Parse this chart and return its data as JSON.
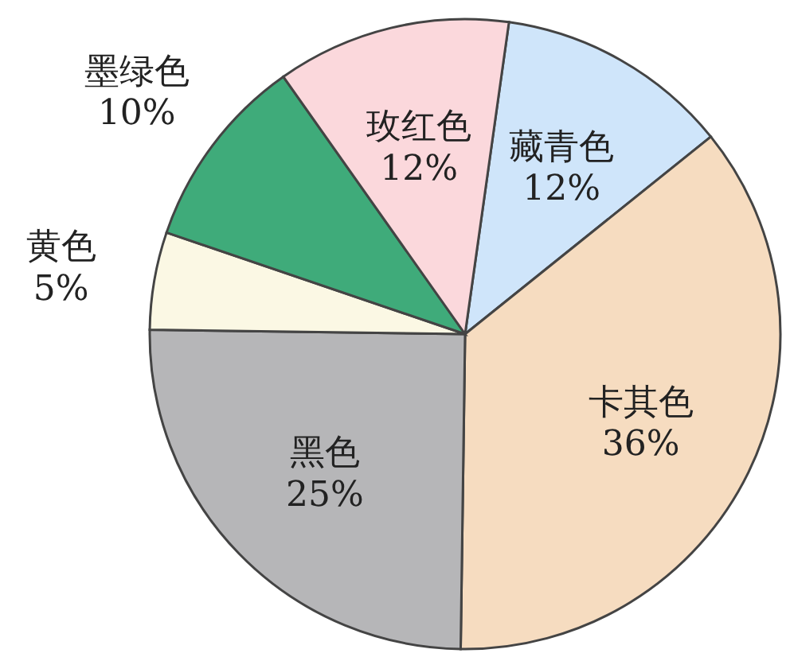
{
  "chart_data": {
    "type": "pie",
    "categories": [
      "藏青色",
      "卡其色",
      "黑色",
      "黄色",
      "墨绿色",
      "玫红色"
    ],
    "values": [
      12,
      36,
      25,
      5,
      10,
      12
    ],
    "value_labels": [
      "12%",
      "36%",
      "25%",
      "5%",
      "10%",
      "12%"
    ],
    "colors": [
      "#cfe5fa",
      "#f6dcc0",
      "#b6b6b8",
      "#fbf8e4",
      "#3fab7a",
      "#fbd8dc"
    ]
  }
}
